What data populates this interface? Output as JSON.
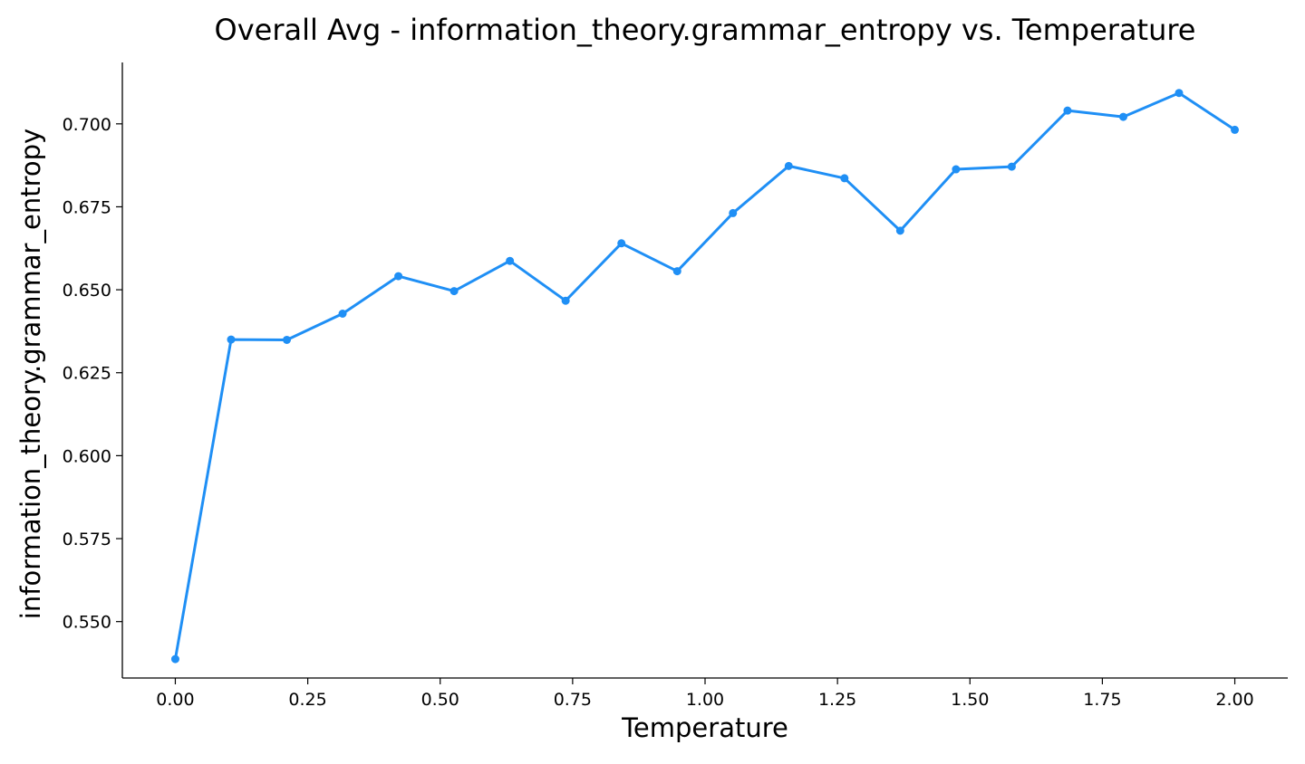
{
  "chart_data": {
    "type": "line",
    "title": "Overall Avg - information_theory.grammar_entropy vs. Temperature",
    "xlabel": "Temperature",
    "ylabel": "information_theory.grammar_entropy",
    "xlim": [
      -0.1,
      2.1
    ],
    "ylim": [
      0.533,
      0.7185
    ],
    "x_ticks": [
      0.0,
      0.25,
      0.5,
      0.75,
      1.0,
      1.25,
      1.5,
      1.75,
      2.0
    ],
    "x_tick_labels": [
      "0.00",
      "0.25",
      "0.50",
      "0.75",
      "1.00",
      "1.25",
      "1.50",
      "1.75",
      "2.00"
    ],
    "y_ticks": [
      0.55,
      0.575,
      0.6,
      0.625,
      0.65,
      0.675,
      0.7
    ],
    "y_tick_labels": [
      "0.550",
      "0.575",
      "0.600",
      "0.625",
      "0.650",
      "0.675",
      "0.700"
    ],
    "grid": false,
    "series": [
      {
        "color": "#1f8ff5",
        "x": [
          0.0,
          0.1053,
          0.2105,
          0.3158,
          0.4211,
          0.5263,
          0.6316,
          0.7368,
          0.8421,
          0.9474,
          1.0526,
          1.1579,
          1.2632,
          1.3684,
          1.4737,
          1.5789,
          1.6842,
          1.7895,
          1.8947,
          2.0
        ],
        "y": [
          0.5387,
          0.635,
          0.6349,
          0.6428,
          0.6541,
          0.6496,
          0.6587,
          0.6467,
          0.664,
          0.6556,
          0.6731,
          0.6873,
          0.6836,
          0.6678,
          0.6863,
          0.6871,
          0.704,
          0.7021,
          0.7093,
          0.6982
        ]
      }
    ]
  }
}
